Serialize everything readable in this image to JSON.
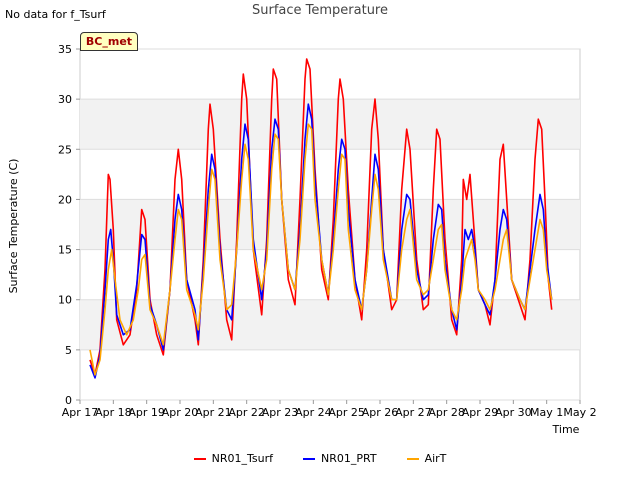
{
  "header": {
    "note": "No data for f_Tsurf",
    "badge": "BC_met"
  },
  "chart_data": {
    "type": "line",
    "title": "Surface Temperature",
    "xlabel": "Time",
    "ylabel": "Surface Temperature (C)",
    "ylim": [
      0,
      35
    ],
    "xlim": [
      "2018-04-17",
      "2018-05-02"
    ],
    "x_tick_labels": [
      "Apr 17",
      "Apr 18",
      "Apr 19",
      "Apr 20",
      "Apr 21",
      "Apr 22",
      "Apr 23",
      "Apr 24",
      "Apr 25",
      "Apr 26",
      "Apr 27",
      "Apr 28",
      "Apr 29",
      "Apr 30",
      "May 1",
      "May 2"
    ],
    "y_ticks": [
      0,
      5,
      10,
      15,
      20,
      25,
      30,
      35
    ],
    "grid": true,
    "legend_position": "bottom",
    "series": [
      {
        "name": "NR01_Tsurf",
        "color": "#ff0000",
        "points": [
          [
            0.3,
            4
          ],
          [
            0.45,
            2.5
          ],
          [
            0.6,
            5
          ],
          [
            0.75,
            13
          ],
          [
            0.85,
            22.5
          ],
          [
            0.9,
            22
          ],
          [
            1.0,
            17
          ],
          [
            1.1,
            8
          ],
          [
            1.3,
            5.5
          ],
          [
            1.5,
            6.5
          ],
          [
            1.7,
            11
          ],
          [
            1.85,
            19
          ],
          [
            1.95,
            18
          ],
          [
            2.1,
            10
          ],
          [
            2.3,
            6.5
          ],
          [
            2.5,
            4.5
          ],
          [
            2.7,
            11
          ],
          [
            2.85,
            22
          ],
          [
            2.95,
            25
          ],
          [
            3.05,
            22
          ],
          [
            3.2,
            12
          ],
          [
            3.45,
            8
          ],
          [
            3.55,
            5.5
          ],
          [
            3.7,
            14
          ],
          [
            3.85,
            27
          ],
          [
            3.9,
            29.5
          ],
          [
            4.0,
            27
          ],
          [
            4.2,
            16
          ],
          [
            4.4,
            8
          ],
          [
            4.55,
            6
          ],
          [
            4.7,
            16
          ],
          [
            4.85,
            30
          ],
          [
            4.9,
            32.5
          ],
          [
            5.0,
            30
          ],
          [
            5.2,
            15
          ],
          [
            5.45,
            8.5
          ],
          [
            5.6,
            16
          ],
          [
            5.75,
            30
          ],
          [
            5.8,
            33
          ],
          [
            5.9,
            32
          ],
          [
            6.05,
            20
          ],
          [
            6.25,
            12
          ],
          [
            6.45,
            9.5
          ],
          [
            6.6,
            20
          ],
          [
            6.75,
            32
          ],
          [
            6.8,
            34
          ],
          [
            6.9,
            33
          ],
          [
            7.05,
            23
          ],
          [
            7.25,
            13
          ],
          [
            7.45,
            10
          ],
          [
            7.6,
            18
          ],
          [
            7.75,
            30
          ],
          [
            7.8,
            32
          ],
          [
            7.9,
            30
          ],
          [
            8.05,
            21
          ],
          [
            8.25,
            12
          ],
          [
            8.45,
            8
          ],
          [
            8.6,
            15
          ],
          [
            8.75,
            27
          ],
          [
            8.85,
            30
          ],
          [
            8.95,
            26
          ],
          [
            9.1,
            15
          ],
          [
            9.35,
            9
          ],
          [
            9.5,
            10
          ],
          [
            9.65,
            21
          ],
          [
            9.8,
            27
          ],
          [
            9.9,
            25
          ],
          [
            10.1,
            14
          ],
          [
            10.3,
            9
          ],
          [
            10.45,
            9.5
          ],
          [
            10.6,
            21
          ],
          [
            10.7,
            27
          ],
          [
            10.8,
            26
          ],
          [
            10.95,
            16
          ],
          [
            11.15,
            8
          ],
          [
            11.3,
            6.5
          ],
          [
            11.45,
            14
          ],
          [
            11.5,
            22
          ],
          [
            11.6,
            20
          ],
          [
            11.7,
            22.5
          ],
          [
            11.8,
            18
          ],
          [
            11.95,
            11
          ],
          [
            12.15,
            9.5
          ],
          [
            12.3,
            7.5
          ],
          [
            12.45,
            12
          ],
          [
            12.55,
            20
          ],
          [
            12.6,
            24
          ],
          [
            12.7,
            25.5
          ],
          [
            12.8,
            20
          ],
          [
            12.95,
            12
          ],
          [
            13.2,
            9.5
          ],
          [
            13.35,
            8
          ],
          [
            13.5,
            14
          ],
          [
            13.65,
            24
          ],
          [
            13.75,
            28
          ],
          [
            13.85,
            27
          ],
          [
            13.95,
            20
          ],
          [
            14.05,
            12
          ],
          [
            14.15,
            9
          ]
        ]
      },
      {
        "name": "NR01_PRT",
        "color": "#0000ff",
        "points": [
          [
            0.3,
            3.5
          ],
          [
            0.45,
            2.2
          ],
          [
            0.6,
            4.5
          ],
          [
            0.75,
            11
          ],
          [
            0.85,
            16
          ],
          [
            0.92,
            17
          ],
          [
            1.0,
            14
          ],
          [
            1.1,
            8.5
          ],
          [
            1.3,
            6.5
          ],
          [
            1.5,
            7
          ],
          [
            1.7,
            11.5
          ],
          [
            1.85,
            16.5
          ],
          [
            1.95,
            16
          ],
          [
            2.1,
            9.5
          ],
          [
            2.3,
            7.5
          ],
          [
            2.5,
            5
          ],
          [
            2.7,
            11
          ],
          [
            2.85,
            18
          ],
          [
            2.95,
            20.5
          ],
          [
            3.05,
            19
          ],
          [
            3.2,
            12
          ],
          [
            3.45,
            9
          ],
          [
            3.55,
            6
          ],
          [
            3.7,
            13
          ],
          [
            3.85,
            21
          ],
          [
            3.95,
            24.5
          ],
          [
            4.05,
            23
          ],
          [
            4.2,
            15
          ],
          [
            4.4,
            9
          ],
          [
            4.55,
            8
          ],
          [
            4.7,
            15
          ],
          [
            4.85,
            24
          ],
          [
            4.95,
            27.5
          ],
          [
            5.05,
            26
          ],
          [
            5.2,
            16
          ],
          [
            5.45,
            10
          ],
          [
            5.6,
            15
          ],
          [
            5.75,
            25
          ],
          [
            5.85,
            28
          ],
          [
            5.95,
            27
          ],
          [
            6.05,
            20
          ],
          [
            6.25,
            13
          ],
          [
            6.45,
            11
          ],
          [
            6.6,
            17
          ],
          [
            6.75,
            26
          ],
          [
            6.85,
            29.5
          ],
          [
            6.95,
            28
          ],
          [
            7.05,
            22
          ],
          [
            7.25,
            14
          ],
          [
            7.45,
            10.5
          ],
          [
            7.6,
            16
          ],
          [
            7.75,
            23
          ],
          [
            7.85,
            26
          ],
          [
            7.95,
            25
          ],
          [
            8.05,
            19
          ],
          [
            8.25,
            12
          ],
          [
            8.45,
            9
          ],
          [
            8.6,
            13
          ],
          [
            8.75,
            20
          ],
          [
            8.85,
            24.5
          ],
          [
            8.95,
            23
          ],
          [
            9.1,
            15
          ],
          [
            9.35,
            10
          ],
          [
            9.5,
            10
          ],
          [
            9.65,
            17
          ],
          [
            9.8,
            20.5
          ],
          [
            9.9,
            20
          ],
          [
            10.1,
            13
          ],
          [
            10.3,
            10
          ],
          [
            10.45,
            10.5
          ],
          [
            10.6,
            16
          ],
          [
            10.75,
            19.5
          ],
          [
            10.85,
            19
          ],
          [
            10.95,
            14
          ],
          [
            11.15,
            9
          ],
          [
            11.3,
            7
          ],
          [
            11.45,
            12
          ],
          [
            11.55,
            17
          ],
          [
            11.65,
            16
          ],
          [
            11.75,
            17
          ],
          [
            11.85,
            15
          ],
          [
            11.95,
            11
          ],
          [
            12.15,
            9.5
          ],
          [
            12.3,
            8.5
          ],
          [
            12.45,
            12
          ],
          [
            12.6,
            17
          ],
          [
            12.7,
            19
          ],
          [
            12.8,
            18
          ],
          [
            12.95,
            12
          ],
          [
            13.2,
            10
          ],
          [
            13.35,
            9
          ],
          [
            13.5,
            13
          ],
          [
            13.65,
            17
          ],
          [
            13.8,
            20.5
          ],
          [
            13.9,
            19
          ],
          [
            14.0,
            14
          ],
          [
            14.15,
            10
          ]
        ]
      },
      {
        "name": "AirT",
        "color": "#ffa500",
        "points": [
          [
            0.3,
            5
          ],
          [
            0.45,
            2.5
          ],
          [
            0.6,
            4
          ],
          [
            0.75,
            9
          ],
          [
            0.85,
            13
          ],
          [
            0.95,
            15
          ],
          [
            1.05,
            12
          ],
          [
            1.2,
            8
          ],
          [
            1.4,
            6.5
          ],
          [
            1.6,
            8
          ],
          [
            1.75,
            11
          ],
          [
            1.85,
            14
          ],
          [
            1.95,
            14.5
          ],
          [
            2.1,
            9
          ],
          [
            2.3,
            7.5
          ],
          [
            2.5,
            5.5
          ],
          [
            2.7,
            11
          ],
          [
            2.85,
            16
          ],
          [
            2.95,
            19
          ],
          [
            3.05,
            18
          ],
          [
            3.2,
            11
          ],
          [
            3.45,
            8.5
          ],
          [
            3.55,
            7
          ],
          [
            3.7,
            12
          ],
          [
            3.85,
            19
          ],
          [
            3.95,
            23
          ],
          [
            4.05,
            22
          ],
          [
            4.2,
            14
          ],
          [
            4.4,
            9
          ],
          [
            4.55,
            9.5
          ],
          [
            4.7,
            15
          ],
          [
            4.85,
            22
          ],
          [
            4.95,
            25.5
          ],
          [
            5.05,
            24
          ],
          [
            5.2,
            15
          ],
          [
            5.45,
            11
          ],
          [
            5.6,
            14
          ],
          [
            5.75,
            23
          ],
          [
            5.85,
            26.5
          ],
          [
            5.95,
            26
          ],
          [
            6.05,
            20
          ],
          [
            6.25,
            13
          ],
          [
            6.45,
            11
          ],
          [
            6.6,
            16
          ],
          [
            6.75,
            24
          ],
          [
            6.85,
            27.5
          ],
          [
            6.95,
            27
          ],
          [
            7.05,
            20
          ],
          [
            7.25,
            14
          ],
          [
            7.45,
            10.5
          ],
          [
            7.6,
            15
          ],
          [
            7.75,
            21
          ],
          [
            7.85,
            24.5
          ],
          [
            7.95,
            24
          ],
          [
            8.05,
            17
          ],
          [
            8.25,
            11
          ],
          [
            8.45,
            9
          ],
          [
            8.6,
            13
          ],
          [
            8.75,
            19
          ],
          [
            8.85,
            22.5
          ],
          [
            8.95,
            21
          ],
          [
            9.1,
            14
          ],
          [
            9.35,
            10
          ],
          [
            9.5,
            10
          ],
          [
            9.65,
            15
          ],
          [
            9.8,
            18
          ],
          [
            9.9,
            19
          ],
          [
            10.1,
            12
          ],
          [
            10.3,
            10.5
          ],
          [
            10.45,
            11
          ],
          [
            10.6,
            14
          ],
          [
            10.75,
            17
          ],
          [
            10.85,
            17.5
          ],
          [
            10.95,
            13
          ],
          [
            11.15,
            9
          ],
          [
            11.3,
            8
          ],
          [
            11.45,
            11
          ],
          [
            11.55,
            14
          ],
          [
            11.65,
            15
          ],
          [
            11.75,
            16
          ],
          [
            11.85,
            14
          ],
          [
            11.95,
            11
          ],
          [
            12.15,
            10
          ],
          [
            12.3,
            9
          ],
          [
            12.45,
            11
          ],
          [
            12.6,
            14
          ],
          [
            12.7,
            16
          ],
          [
            12.8,
            17
          ],
          [
            12.95,
            12
          ],
          [
            13.2,
            10
          ],
          [
            13.35,
            9
          ],
          [
            13.5,
            12
          ],
          [
            13.65,
            15
          ],
          [
            13.8,
            18
          ],
          [
            13.9,
            17
          ],
          [
            14.0,
            13
          ],
          [
            14.15,
            10
          ]
        ]
      }
    ]
  }
}
